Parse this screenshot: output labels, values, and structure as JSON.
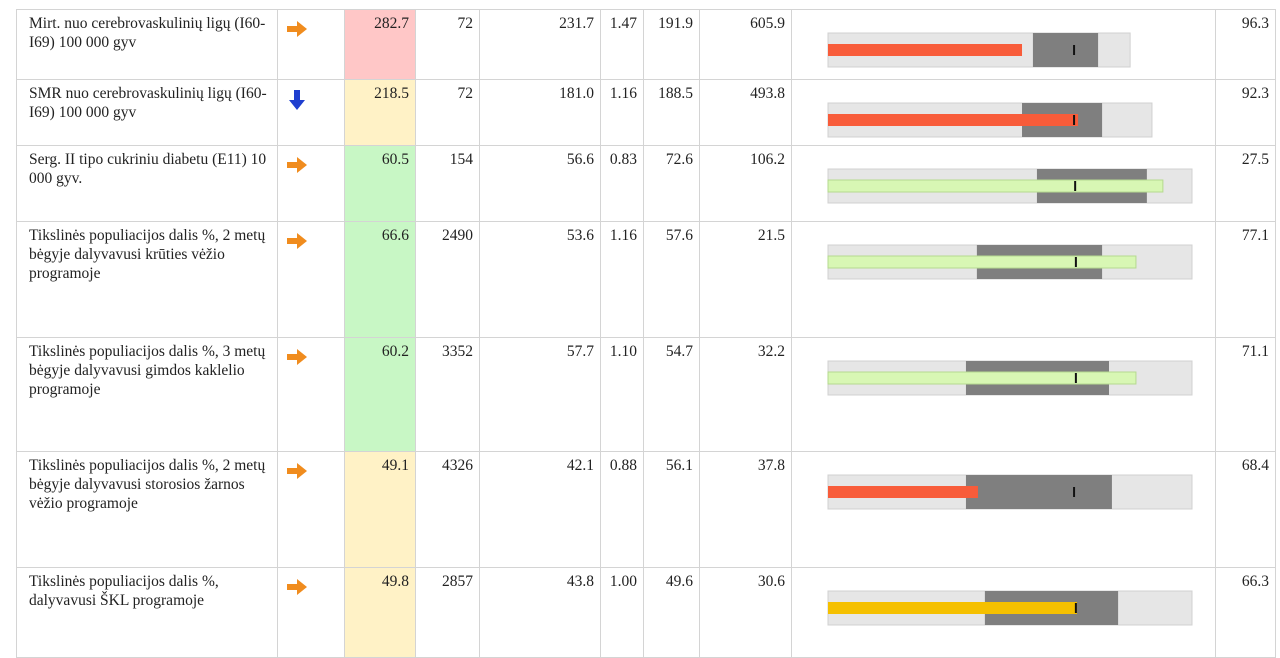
{
  "table": {
    "rows": [
      {
        "label": "Mirt. nuo cerebrovaskulinių ligų  (I60-I69) 100 000 gyv",
        "trend": "right",
        "value": "282.7",
        "value_color": "#ffc7c7",
        "cells": [
          "72",
          "231.7",
          "1.47",
          "191.9",
          "605.9"
        ],
        "bullet": {
          "track": 83.0,
          "band": [
            56.3,
            74.2
          ],
          "bar": 53.3,
          "marker": 67.6,
          "bar_color": "#f85c3a"
        },
        "last": "96.3"
      },
      {
        "label": "SMR nuo cerebrovaskulinių ligų (I60-I69) 100 000 gyv",
        "trend": "down",
        "value": "218.5",
        "value_color": "#fff2c6",
        "cells": [
          "72",
          "181.0",
          "1.16",
          "188.5",
          "493.8"
        ],
        "bullet": {
          "track": 89.0,
          "band": [
            53.3,
            75.3
          ],
          "bar": 68.7,
          "marker": 67.6,
          "bar_color": "#f85c3a"
        },
        "last": "92.3"
      },
      {
        "label": "Serg. II tipo cukriniu diabetu (E11) 10 000 gyv.",
        "trend": "right",
        "value": "60.5",
        "value_color": "#c8f7c5",
        "cells": [
          "154",
          "56.6",
          "0.83",
          "72.6",
          "106.2"
        ],
        "bullet": {
          "track": 100,
          "band": [
            57.4,
            87.6
          ],
          "bar": 92.0,
          "marker": 67.9,
          "bar_color": "#d8f7b4"
        },
        "last": "27.5"
      },
      {
        "label": "Tikslinės populiacijos dalis %, 2 metų bėgyje dalyvavusi krūties vėžio programoje",
        "trend": "right",
        "value": "66.6",
        "value_color": "#c8f7c5",
        "cells": [
          "2490",
          "53.6",
          "1.16",
          "57.6",
          "21.5"
        ],
        "bullet": {
          "track": 100,
          "band": [
            40.9,
            75.3
          ],
          "bar": 84.6,
          "marker": 68.1,
          "bar_color": "#d8f7b4"
        },
        "last": "77.1"
      },
      {
        "label": "Tikslinės populiacijos dalis %, 3 metų bėgyje dalyvavusi gimdos kaklelio programoje",
        "trend": "right",
        "value": "60.2",
        "value_color": "#c8f7c5",
        "cells": [
          "3352",
          "57.7",
          "1.10",
          "54.7",
          "32.2"
        ],
        "bullet": {
          "track": 100,
          "band": [
            37.9,
            77.2
          ],
          "bar": 84.6,
          "marker": 68.1,
          "bar_color": "#d8f7b4"
        },
        "last": "71.1"
      },
      {
        "label": "Tikslinės populiacijos dalis %, 2 metų bėgyje dalyvavusi storosios žarnos vėžio programoje",
        "trend": "right",
        "value": "49.1",
        "value_color": "#fff2c6",
        "cells": [
          "4326",
          "42.1",
          "0.88",
          "56.1",
          "37.8"
        ],
        "bullet": {
          "track": 100,
          "band": [
            37.9,
            78.0
          ],
          "bar": 41.2,
          "marker": 67.6,
          "bar_color": "#f85c3a"
        },
        "last": "68.4"
      },
      {
        "label": "Tikslinės populiacijos dalis %, dalyvavusi ŠKL programoje",
        "trend": "right",
        "value": "49.8",
        "value_color": "#fff2c6",
        "cells": [
          "2857",
          "43.8",
          "1.00",
          "49.6",
          "30.6"
        ],
        "bullet": {
          "track": 100,
          "band": [
            43.1,
            79.7
          ],
          "bar": 68.4,
          "marker": 68.1,
          "bar_color": "#f5c000"
        },
        "last": "66.3"
      }
    ]
  }
}
